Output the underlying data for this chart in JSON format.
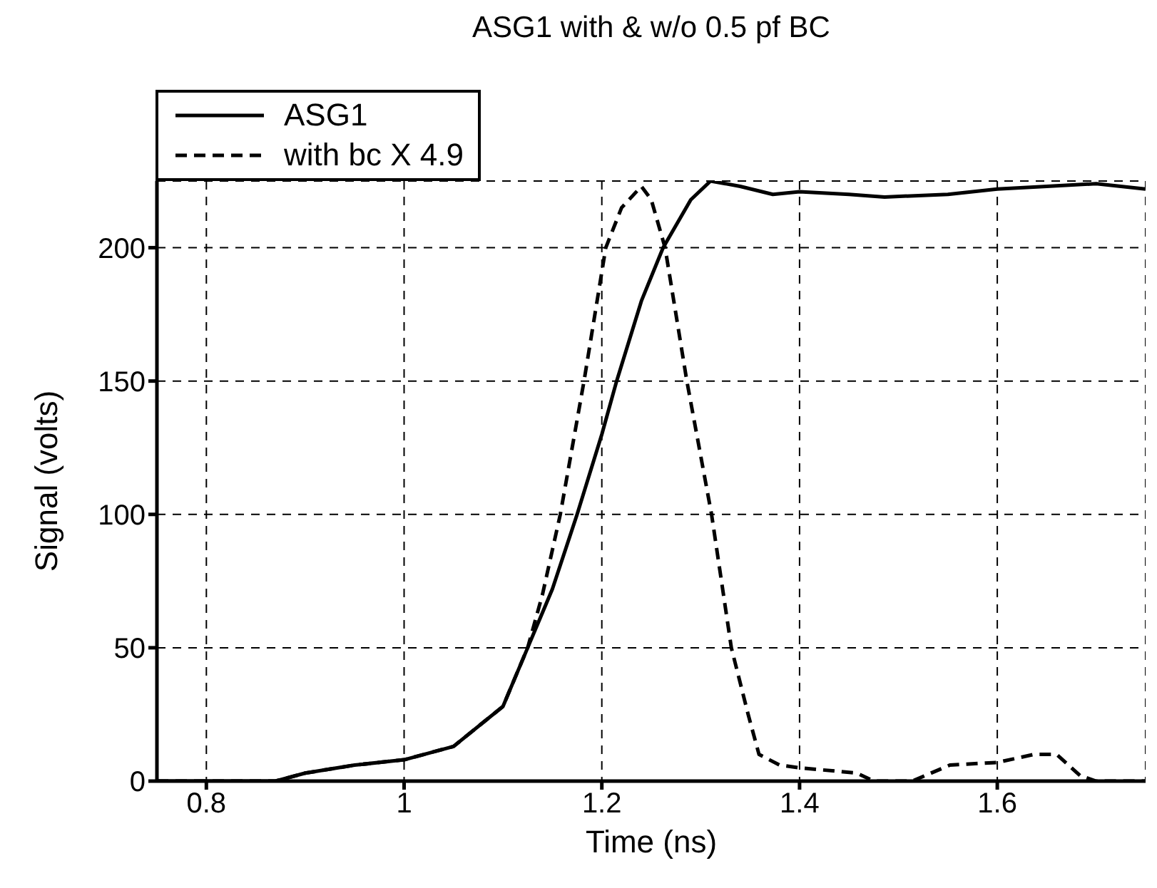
{
  "chart_data": {
    "type": "line",
    "title": "ASG1 with & w/o 0.5 pf BC",
    "xlabel": "Time (ns)",
    "ylabel": "Signal (volts)",
    "xlim": [
      0.75,
      1.75
    ],
    "ylim": [
      0,
      225
    ],
    "xticks": [
      0.8,
      1,
      1.2,
      1.4,
      1.6
    ],
    "yticks": [
      0,
      50,
      100,
      150,
      200
    ],
    "grid": true,
    "legend": "top left",
    "marker": "none",
    "series": [
      {
        "name": "ASG1",
        "color": "#000000",
        "line_style": "solid",
        "x": [
          0.75,
          0.8,
          0.87,
          0.9,
          0.95,
          1.0,
          1.05,
          1.1,
          1.125,
          1.15,
          1.175,
          1.2,
          1.215,
          1.24,
          1.262,
          1.29,
          1.31,
          1.34,
          1.373,
          1.4,
          1.45,
          1.486,
          1.55,
          1.6,
          1.65,
          1.7,
          1.75
        ],
        "values": [
          0,
          0,
          0,
          3,
          6,
          8,
          13,
          28,
          50,
          72,
          100,
          130,
          150,
          180,
          200,
          218,
          225,
          223,
          220,
          221,
          220,
          219,
          220,
          222,
          223,
          224,
          222
        ]
      },
      {
        "name": "with bc X 4.9",
        "color": "#000000",
        "line_style": "dashed",
        "x": [
          0.75,
          0.8,
          0.87,
          0.9,
          0.95,
          1.0,
          1.05,
          1.1,
          1.125,
          1.14,
          1.158,
          1.182,
          1.204,
          1.22,
          1.24,
          1.25,
          1.264,
          1.286,
          1.311,
          1.331,
          1.348,
          1.359,
          1.38,
          1.4,
          1.458,
          1.475,
          1.51,
          1.514,
          1.552,
          1.6,
          1.637,
          1.66,
          1.684,
          1.7,
          1.75
        ],
        "values": [
          0,
          0,
          0,
          3,
          6,
          8,
          13,
          28,
          50,
          70,
          100,
          150,
          200,
          215,
          223,
          218,
          200,
          150,
          100,
          50,
          25,
          10,
          6,
          5,
          3,
          0,
          0,
          0,
          6,
          7,
          10,
          10,
          2,
          0,
          0
        ]
      }
    ]
  }
}
